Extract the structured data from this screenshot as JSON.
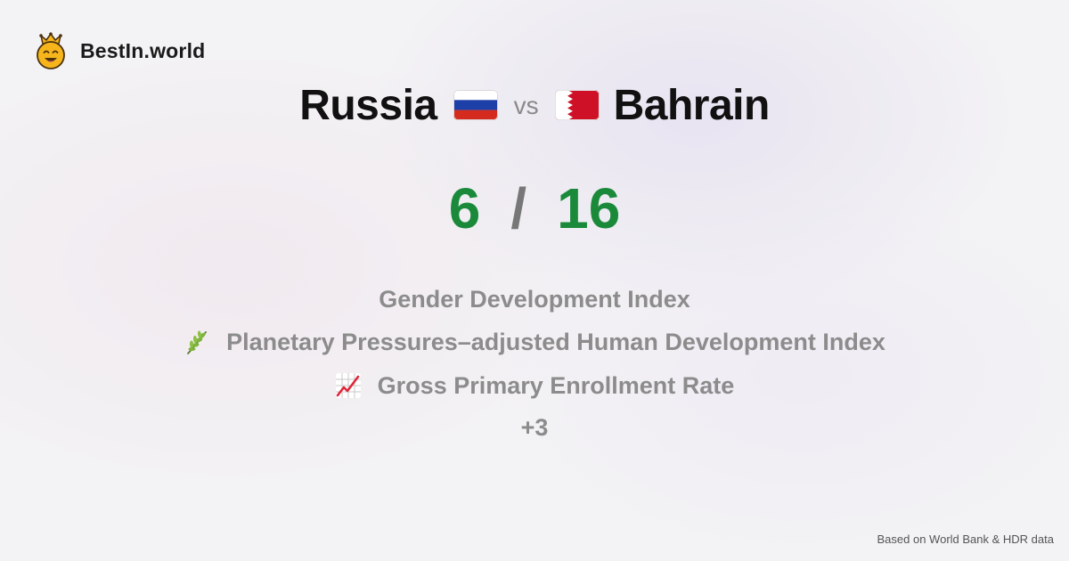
{
  "brand": {
    "name": "BestIn.world",
    "logo_icon": "smiling-crown-face-icon"
  },
  "comparison": {
    "left_country": "Russia",
    "left_flag": "russia-flag-icon",
    "vs_label": "vs",
    "right_country": "Bahrain",
    "right_flag": "bahrain-flag-icon"
  },
  "score": {
    "left": "6",
    "separator": "/",
    "right": "16",
    "color": "#1a8a3a"
  },
  "metrics": [
    {
      "icon": "",
      "label": "Gender Development Index"
    },
    {
      "icon": "herb-icon",
      "label": "Planetary Pressures–adjusted Human Development Index"
    },
    {
      "icon": "chart-increasing-icon",
      "label": "Gross Primary Enrollment Rate"
    }
  ],
  "more_label": "+3",
  "footer": {
    "source": "Based on World Bank & HDR data"
  }
}
